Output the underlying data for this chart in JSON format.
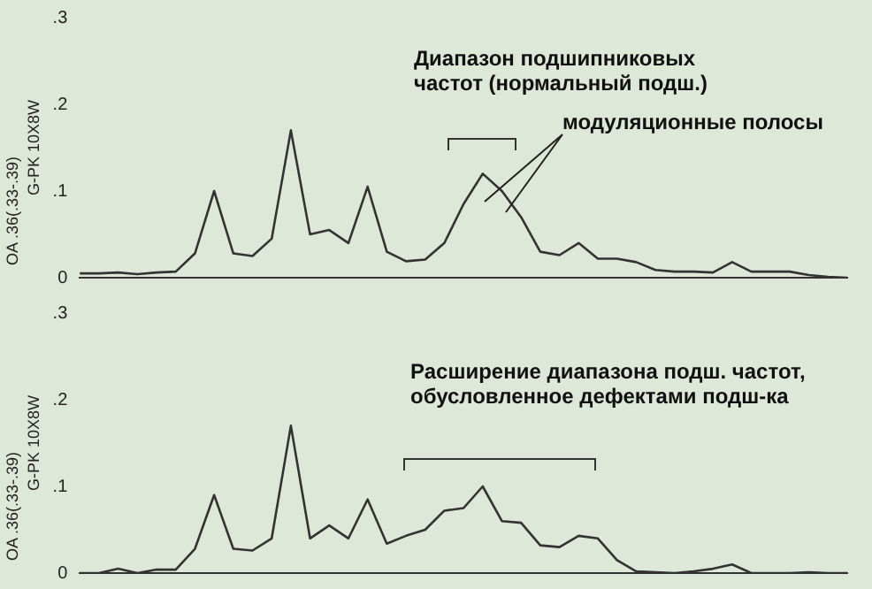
{
  "chart_data": [
    {
      "type": "line",
      "ylabel": "G-PK 10X8W",
      "annotations": [
        "OA .36(.33-.39)",
        "Диапазон подшипниковых частот (нормальный подш.)",
        "модуляционные полосы"
      ],
      "categories": [
        null,
        null,
        null,
        null,
        null,
        null,
        null,
        null,
        null,
        null,
        null,
        null,
        null,
        null,
        null,
        null,
        null,
        null,
        null,
        null,
        null,
        null,
        null,
        null,
        null,
        null,
        null,
        null,
        null,
        null,
        null,
        null,
        null,
        null,
        null,
        null,
        null,
        null,
        null,
        null,
        null
      ],
      "series": [
        {
          "color": "#333333",
          "values": [
            0.005,
            0.005,
            0.006,
            0.004,
            0.006,
            0.007,
            0.028,
            0.1,
            0.028,
            0.025,
            0.045,
            0.17,
            0.05,
            0.055,
            0.04,
            0.105,
            0.03,
            0.019,
            0.021,
            0.04,
            0.085,
            0.12,
            0.1,
            0.07,
            0.03,
            0.026,
            0.04,
            0.022,
            0.022,
            0.018,
            0.009,
            0.007,
            0.007,
            0.006,
            0.018,
            0.007,
            0.007,
            0.007,
            0.003,
            0.001,
            0
          ]
        }
      ],
      "ylim": [
        0,
        0.3
      ],
      "yticks": [
        0,
        {
          "value": 0.1,
          "label": ".1"
        },
        {
          "value": 0.2,
          "label": ".2"
        },
        {
          "value": 0.3,
          "label": ".3"
        }
      ],
      "tick_labels": "y",
      "grid": false,
      "legend": false,
      "marker": "none",
      "line_style": "solid"
    },
    {
      "type": "line",
      "ylabel": "G-PK 10X8W",
      "annotations": [
        "OA .36(.33-.39)",
        "Расширение диапазона подш. частот, обусловленное дефектами подш-ка"
      ],
      "categories": [
        null,
        null,
        null,
        null,
        null,
        null,
        null,
        null,
        null,
        null,
        null,
        null,
        null,
        null,
        null,
        null,
        null,
        null,
        null,
        null,
        null,
        null,
        null,
        null,
        null,
        null,
        null,
        null,
        null,
        null,
        null,
        null,
        null,
        null,
        null,
        null,
        null,
        null,
        null,
        null,
        null
      ],
      "series": [
        {
          "color": "#333333",
          "values": [
            0,
            0,
            0.005,
            0,
            0.004,
            0.004,
            0.028,
            0.09,
            0.028,
            0.026,
            0.04,
            0.17,
            0.04,
            0.055,
            0.04,
            0.085,
            0.034,
            0.043,
            0.05,
            0.072,
            0.075,
            0.1,
            0.06,
            0.058,
            0.032,
            0.03,
            0.043,
            0.04,
            0.015,
            0.002,
            0.001,
            0,
            0.002,
            0.005,
            0.01,
            0,
            0,
            0,
            0.001,
            0,
            0
          ]
        }
      ],
      "ylim": [
        0,
        0.3
      ],
      "yticks": [
        0,
        {
          "value": 0.1,
          "label": ".1"
        },
        {
          "value": 0.2,
          "label": ".2"
        },
        {
          "value": 0.3,
          "label": ".3"
        }
      ],
      "tick_labels": "y",
      "grid": false,
      "legend": false,
      "marker": "none",
      "line_style": "solid"
    }
  ]
}
